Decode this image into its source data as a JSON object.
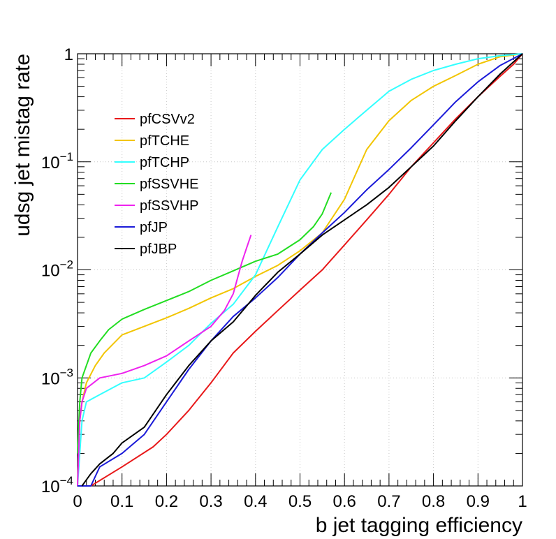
{
  "chart_data": {
    "type": "line",
    "title": "",
    "xlabel": "b jet tagging efficiency",
    "ylabel": "udsg jet mistag rate",
    "xlim": [
      0,
      1
    ],
    "ylim": [
      0.0001,
      1
    ],
    "yscale": "log",
    "grid": true,
    "legend_position": "top-left",
    "x_ticks": [
      {
        "value": 0,
        "label": "0"
      },
      {
        "value": 0.1,
        "label": "0.1"
      },
      {
        "value": 0.2,
        "label": "0.2"
      },
      {
        "value": 0.3,
        "label": "0.3"
      },
      {
        "value": 0.4,
        "label": "0.4"
      },
      {
        "value": 0.5,
        "label": "0.5"
      },
      {
        "value": 0.6,
        "label": "0.6"
      },
      {
        "value": 0.7,
        "label": "0.7"
      },
      {
        "value": 0.8,
        "label": "0.8"
      },
      {
        "value": 0.9,
        "label": "0.9"
      },
      {
        "value": 1,
        "label": "1"
      }
    ],
    "y_ticks": [
      {
        "value": 0.0001,
        "base": "10",
        "exp": "−4"
      },
      {
        "value": 0.001,
        "base": "10",
        "exp": "−3"
      },
      {
        "value": 0.01,
        "base": "10",
        "exp": "−2"
      },
      {
        "value": 0.1,
        "base": "10",
        "exp": "−1"
      },
      {
        "value": 1,
        "base": "1",
        "exp": ""
      }
    ],
    "series": [
      {
        "name": "pfCSVv2",
        "color": "#e8191a",
        "x": [
          0.03,
          0.1,
          0.17,
          0.2,
          0.25,
          0.3,
          0.35,
          0.4,
          0.45,
          0.5,
          0.55,
          0.6,
          0.65,
          0.7,
          0.75,
          0.8,
          0.85,
          0.9,
          0.95,
          0.98,
          1.0
        ],
        "y": [
          0.0001,
          0.00015,
          0.00023,
          0.0003,
          0.0005,
          0.0009,
          0.0017,
          0.0027,
          0.0042,
          0.0065,
          0.01,
          0.017,
          0.029,
          0.05,
          0.09,
          0.15,
          0.25,
          0.4,
          0.62,
          0.8,
          1.0
        ]
      },
      {
        "name": "pfTCHE",
        "color": "#f2c500",
        "x": [
          0,
          0.005,
          0.01,
          0.02,
          0.04,
          0.06,
          0.1,
          0.15,
          0.2,
          0.25,
          0.3,
          0.35,
          0.4,
          0.45,
          0.5,
          0.55,
          0.6,
          0.65,
          0.7,
          0.75,
          0.8,
          0.85,
          0.9,
          0.95,
          1.0
        ],
        "y": [
          0.0001,
          0.0004,
          0.0006,
          0.0009,
          0.0013,
          0.0017,
          0.0025,
          0.003,
          0.0036,
          0.0044,
          0.0055,
          0.0067,
          0.0087,
          0.011,
          0.015,
          0.022,
          0.045,
          0.13,
          0.24,
          0.37,
          0.5,
          0.63,
          0.8,
          0.94,
          1.0
        ]
      },
      {
        "name": "pfTCHP",
        "color": "#33ffff",
        "x": [
          0,
          0.01,
          0.02,
          0.05,
          0.1,
          0.15,
          0.2,
          0.25,
          0.3,
          0.35,
          0.4,
          0.45,
          0.5,
          0.55,
          0.6,
          0.65,
          0.7,
          0.75,
          0.8,
          0.85,
          0.9,
          0.95,
          1.0
        ],
        "y": [
          0.0001,
          0.0004,
          0.0006,
          0.0007,
          0.0009,
          0.001,
          0.0014,
          0.002,
          0.0032,
          0.0048,
          0.009,
          0.025,
          0.068,
          0.13,
          0.2,
          0.3,
          0.45,
          0.58,
          0.7,
          0.8,
          0.9,
          0.96,
          1.0
        ]
      },
      {
        "name": "pfSSVHE",
        "color": "#22dd22",
        "x": [
          0,
          0.005,
          0.01,
          0.02,
          0.03,
          0.05,
          0.07,
          0.1,
          0.15,
          0.2,
          0.25,
          0.3,
          0.35,
          0.4,
          0.45,
          0.5,
          0.53,
          0.55,
          0.57
        ],
        "y": [
          0.0002,
          0.0006,
          0.001,
          0.0013,
          0.0017,
          0.0022,
          0.0028,
          0.0035,
          0.0043,
          0.0052,
          0.0063,
          0.008,
          0.0098,
          0.012,
          0.014,
          0.019,
          0.025,
          0.033,
          0.052
        ]
      },
      {
        "name": "pfSSVHP",
        "color": "#ee22ee",
        "x": [
          0,
          0.005,
          0.01,
          0.02,
          0.05,
          0.1,
          0.15,
          0.2,
          0.25,
          0.3,
          0.33,
          0.35,
          0.36,
          0.37,
          0.38,
          0.39
        ],
        "y": [
          0.0001,
          0.0004,
          0.0006,
          0.0008,
          0.001,
          0.0011,
          0.0013,
          0.0016,
          0.0022,
          0.003,
          0.0042,
          0.006,
          0.0085,
          0.012,
          0.016,
          0.021
        ]
      },
      {
        "name": "pfJP",
        "color": "#1a1ad8",
        "x": [
          0,
          0.03,
          0.05,
          0.1,
          0.15,
          0.2,
          0.25,
          0.3,
          0.35,
          0.4,
          0.45,
          0.5,
          0.55,
          0.6,
          0.65,
          0.7,
          0.75,
          0.8,
          0.85,
          0.9,
          0.95,
          1.0
        ],
        "y": [
          0.0001,
          0.0001,
          0.00015,
          0.0002,
          0.0003,
          0.0006,
          0.0012,
          0.0022,
          0.0037,
          0.0055,
          0.0085,
          0.014,
          0.022,
          0.034,
          0.055,
          0.085,
          0.135,
          0.22,
          0.36,
          0.55,
          0.78,
          1.0
        ]
      },
      {
        "name": "pfJBP",
        "color": "#000000",
        "x": [
          0.01,
          0.03,
          0.05,
          0.08,
          0.1,
          0.15,
          0.2,
          0.25,
          0.3,
          0.35,
          0.4,
          0.45,
          0.5,
          0.55,
          0.6,
          0.65,
          0.7,
          0.75,
          0.8,
          0.85,
          0.9,
          0.95,
          1.0
        ],
        "y": [
          0.0001,
          0.00013,
          0.00016,
          0.0002,
          0.00025,
          0.00035,
          0.0007,
          0.0013,
          0.0022,
          0.0033,
          0.0058,
          0.0095,
          0.014,
          0.021,
          0.029,
          0.04,
          0.058,
          0.09,
          0.14,
          0.24,
          0.4,
          0.65,
          1.0
        ]
      }
    ]
  }
}
